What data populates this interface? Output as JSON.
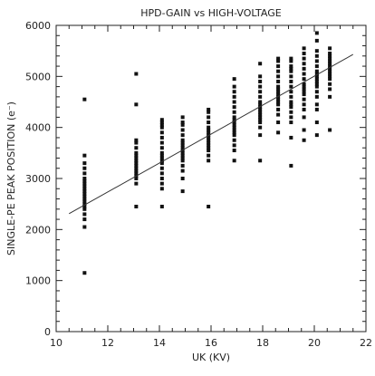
{
  "chart_data": {
    "type": "scatter",
    "title": "HPD-GAIN vs HIGH-VOLTAGE",
    "xlabel": "UK (KV)",
    "ylabel": "SINGLE-PE PEAK POSITION (e⁻)",
    "xlim": [
      10,
      22
    ],
    "ylim": [
      0,
      6000
    ],
    "xticks": [
      10,
      12,
      14,
      16,
      18,
      20,
      22
    ],
    "yticks": [
      0,
      1000,
      2000,
      3000,
      4000,
      5000,
      6000
    ],
    "grid": false,
    "legend": "none",
    "colors": {
      "points": "#111111",
      "fit_line": "#333333",
      "axes": "#222222"
    },
    "marker": "square",
    "series": [
      {
        "x": [
          11.1,
          11.1,
          11.1,
          11.1,
          11.1,
          11.1,
          11.1,
          11.1,
          11.1,
          11.1,
          11.1,
          11.1,
          11.1,
          11.1,
          11.1,
          11.1,
          11.1,
          11.1,
          11.1,
          11.1,
          11.1,
          11.1,
          13.1,
          13.1,
          13.1,
          13.1,
          13.1,
          13.1,
          13.1,
          13.1,
          13.1,
          13.1,
          13.1,
          13.1,
          13.1,
          13.1,
          13.1,
          13.1,
          13.1,
          13.1,
          14.1,
          14.1,
          14.1,
          14.1,
          14.1,
          14.1,
          14.1,
          14.1,
          14.1,
          14.1,
          14.1,
          14.1,
          14.1,
          14.1,
          14.1,
          14.1,
          14.1,
          14.1,
          14.1,
          14.9,
          14.9,
          14.9,
          14.9,
          14.9,
          14.9,
          14.9,
          14.9,
          14.9,
          14.9,
          14.9,
          14.9,
          14.9,
          14.9,
          14.9,
          14.9,
          14.9,
          14.9,
          15.9,
          15.9,
          15.9,
          15.9,
          15.9,
          15.9,
          15.9,
          15.9,
          15.9,
          15.9,
          15.9,
          15.9,
          15.9,
          15.9,
          15.9,
          15.9,
          15.9,
          16.9,
          16.9,
          16.9,
          16.9,
          16.9,
          16.9,
          16.9,
          16.9,
          16.9,
          16.9,
          16.9,
          16.9,
          16.9,
          16.9,
          16.9,
          16.9,
          16.9,
          16.9,
          16.9,
          17.9,
          17.9,
          17.9,
          17.9,
          17.9,
          17.9,
          17.9,
          17.9,
          17.9,
          17.9,
          17.9,
          17.9,
          17.9,
          17.9,
          17.9,
          17.9,
          17.9,
          17.9,
          18.6,
          18.6,
          18.6,
          18.6,
          18.6,
          18.6,
          18.6,
          18.6,
          18.6,
          18.6,
          18.6,
          18.6,
          18.6,
          18.6,
          18.6,
          18.6,
          18.6,
          18.6,
          19.1,
          19.1,
          19.1,
          19.1,
          19.1,
          19.1,
          19.1,
          19.1,
          19.1,
          19.1,
          19.1,
          19.1,
          19.1,
          19.1,
          19.1,
          19.1,
          19.1,
          19.1,
          19.6,
          19.6,
          19.6,
          19.6,
          19.6,
          19.6,
          19.6,
          19.6,
          19.6,
          19.6,
          19.6,
          19.6,
          19.6,
          19.6,
          19.6,
          19.6,
          19.6,
          19.6,
          20.1,
          20.1,
          20.1,
          20.1,
          20.1,
          20.1,
          20.1,
          20.1,
          20.1,
          20.1,
          20.1,
          20.1,
          20.1,
          20.1,
          20.1,
          20.1,
          20.1,
          20.1,
          20.1,
          20.6,
          20.6,
          20.6,
          20.6,
          20.6,
          20.6,
          20.6,
          20.6,
          20.6,
          20.6,
          20.6,
          20.6,
          20.6,
          20.6,
          20.6,
          20.6
        ],
        "y": [
          1150,
          2050,
          2200,
          2300,
          2400,
          2450,
          2500,
          2550,
          2600,
          2650,
          2700,
          2750,
          2800,
          2850,
          2900,
          2950,
          3000,
          3100,
          3200,
          3300,
          3450,
          4550,
          2450,
          2900,
          3000,
          3050,
          3100,
          3150,
          3200,
          3250,
          3300,
          3350,
          3400,
          3450,
          3500,
          3600,
          3700,
          3750,
          4450,
          5050,
          2450,
          2800,
          2900,
          3000,
          3100,
          3200,
          3300,
          3350,
          3400,
          3450,
          3500,
          3600,
          3700,
          3800,
          3900,
          4000,
          4050,
          4100,
          4150,
          2750,
          3000,
          3150,
          3250,
          3350,
          3400,
          3450,
          3500,
          3550,
          3600,
          3650,
          3700,
          3750,
          3850,
          3950,
          4050,
          4100,
          4200,
          2450,
          3350,
          3450,
          3550,
          3600,
          3650,
          3700,
          3750,
          3800,
          3850,
          3900,
          3950,
          4000,
          4100,
          4200,
          4300,
          4350,
          3350,
          3550,
          3650,
          3750,
          3850,
          3900,
          3950,
          4000,
          4050,
          4100,
          4150,
          4200,
          4300,
          4400,
          4500,
          4600,
          4700,
          4800,
          4950,
          3350,
          3850,
          4000,
          4100,
          4150,
          4200,
          4250,
          4300,
          4350,
          4400,
          4450,
          4500,
          4600,
          4700,
          4800,
          4900,
          5000,
          5250,
          3900,
          4100,
          4250,
          4350,
          4450,
          4500,
          4550,
          4600,
          4650,
          4700,
          4750,
          4800,
          4900,
          5000,
          5100,
          5200,
          5300,
          5350,
          3250,
          3800,
          4100,
          4200,
          4300,
          4400,
          4450,
          4500,
          4600,
          4700,
          4800,
          4900,
          5000,
          5100,
          5150,
          5200,
          5300,
          5350,
          3750,
          3950,
          4200,
          4350,
          4450,
          4550,
          4650,
          4700,
          4750,
          4800,
          4850,
          4950,
          5050,
          5150,
          5250,
          5350,
          5450,
          5550,
          3850,
          4100,
          4350,
          4450,
          4600,
          4700,
          4800,
          4850,
          4900,
          4950,
          5000,
          5050,
          5100,
          5200,
          5300,
          5400,
          5500,
          5700,
          5850,
          3950,
          4600,
          4750,
          4850,
          4950,
          5000,
          5050,
          5100,
          5150,
          5200,
          5250,
          5300,
          5350,
          5400,
          5450,
          5550
        ]
      }
    ],
    "fit_line": {
      "x": [
        10.5,
        21.5
      ],
      "y": [
        2310,
        5430
      ]
    }
  }
}
